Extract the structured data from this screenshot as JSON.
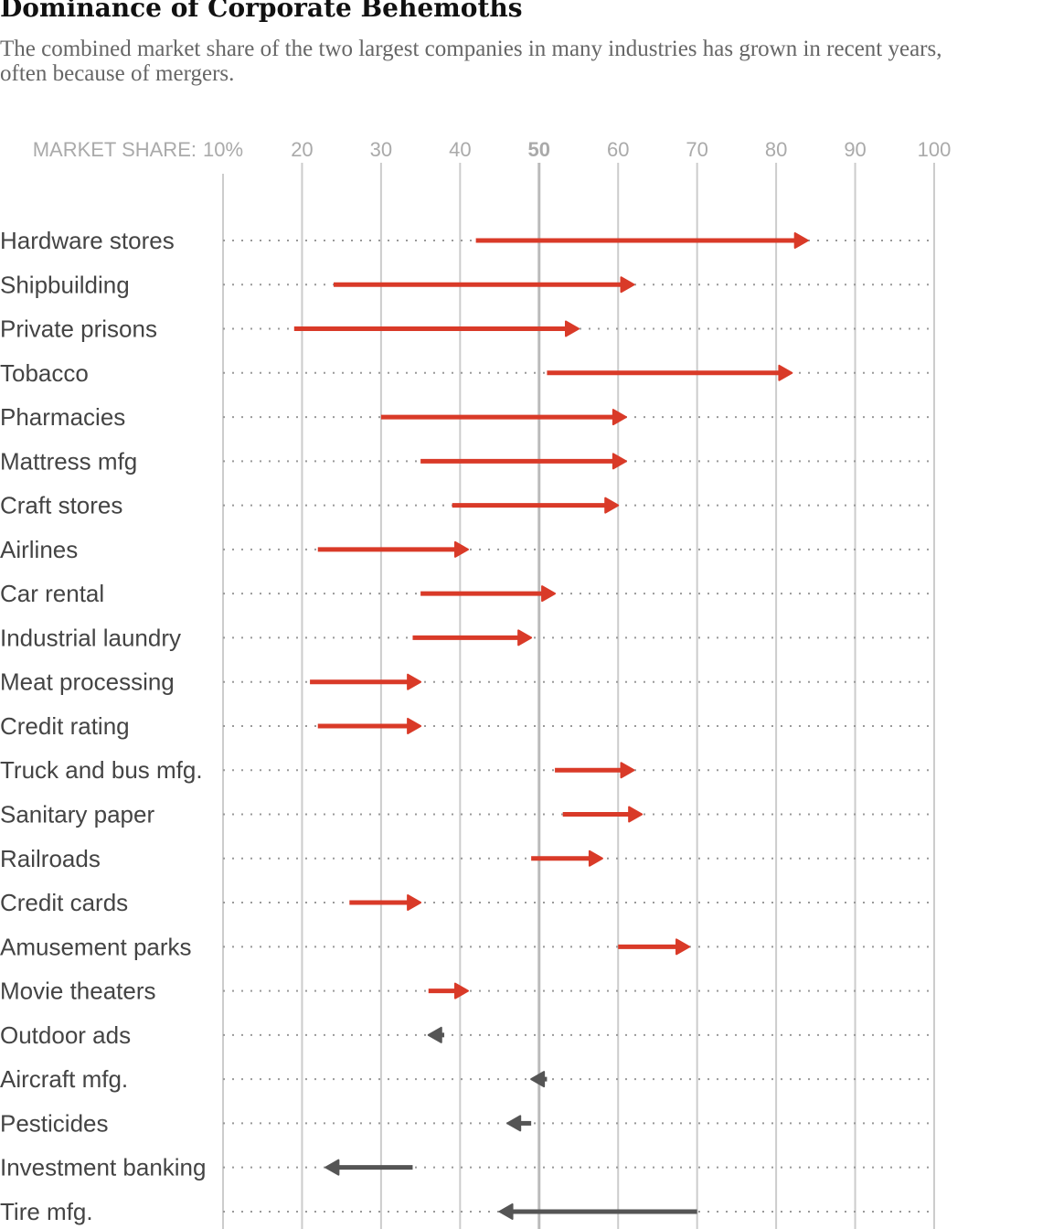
{
  "title": "Dominance of Corporate Behemoths",
  "subtitle": "The combined market share of the two largest companies in many industries has grown in recent years, often because of mergers.",
  "chart_data": {
    "type": "arrow",
    "xlabel": "MARKET SHARE:",
    "xlim": [
      10,
      100
    ],
    "ticks": [
      {
        "value": 10,
        "label": "10%"
      },
      {
        "value": 20,
        "label": "20"
      },
      {
        "value": 30,
        "label": "30"
      },
      {
        "value": 40,
        "label": "40"
      },
      {
        "value": 50,
        "label": "50"
      },
      {
        "value": 60,
        "label": "60"
      },
      {
        "value": 70,
        "label": "70"
      },
      {
        "value": 80,
        "label": "80"
      },
      {
        "value": 90,
        "label": "90"
      },
      {
        "value": 100,
        "label": "100"
      }
    ],
    "grid": true,
    "colors": {
      "increase": "#d93a28",
      "decrease": "#555555",
      "grid": "#cccccc"
    },
    "rows": [
      {
        "label": "Hardware stores",
        "from": 42,
        "to": 84
      },
      {
        "label": "Shipbuilding",
        "from": 24,
        "to": 62
      },
      {
        "label": "Private prisons",
        "from": 19,
        "to": 55
      },
      {
        "label": "Tobacco",
        "from": 51,
        "to": 82
      },
      {
        "label": "Pharmacies",
        "from": 30,
        "to": 61
      },
      {
        "label": "Mattress mfg",
        "from": 35,
        "to": 61
      },
      {
        "label": "Craft stores",
        "from": 39,
        "to": 60
      },
      {
        "label": "Airlines",
        "from": 22,
        "to": 41
      },
      {
        "label": "Car rental",
        "from": 35,
        "to": 52
      },
      {
        "label": "Industrial laundry",
        "from": 34,
        "to": 49
      },
      {
        "label": "Meat processing",
        "from": 21,
        "to": 35
      },
      {
        "label": "Credit rating",
        "from": 22,
        "to": 35
      },
      {
        "label": "Truck and bus mfg.",
        "from": 52,
        "to": 62
      },
      {
        "label": "Sanitary paper",
        "from": 53,
        "to": 63
      },
      {
        "label": "Railroads",
        "from": 49,
        "to": 58
      },
      {
        "label": "Credit cards",
        "from": 26,
        "to": 35
      },
      {
        "label": "Amusement parks",
        "from": 60,
        "to": 69
      },
      {
        "label": "Movie theaters",
        "from": 36,
        "to": 41
      },
      {
        "label": "Outdoor ads",
        "from": 38,
        "to": 36
      },
      {
        "label": "Aircraft mfg.",
        "from": 51,
        "to": 49
      },
      {
        "label": "Pesticides",
        "from": 49,
        "to": 46
      },
      {
        "label": "Investment banking",
        "from": 34,
        "to": 23
      },
      {
        "label": "Tire mfg.",
        "from": 70,
        "to": 45
      }
    ]
  }
}
